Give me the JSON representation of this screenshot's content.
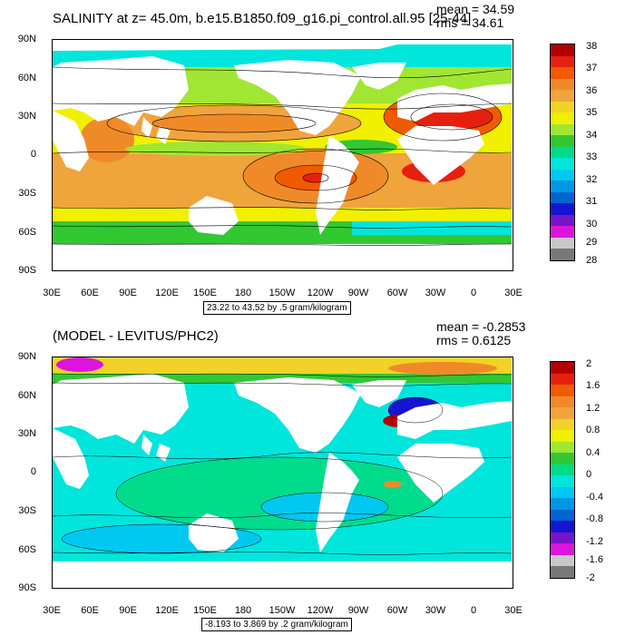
{
  "top": {
    "title": "SALINITY at z=  45.0m, b.e15.B1850.f09_g16.pi_control.all.95 [25-44]",
    "mean": "mean = 34.59",
    "rms": "rms = 34.61",
    "range": "23.22 to 43.52 by .5 gram/kilogram",
    "lat_labels": [
      "90N",
      "60N",
      "30N",
      "0",
      "30S",
      "60S",
      "90S"
    ],
    "lon_labels": [
      "30E",
      "60E",
      "90E",
      "120E",
      "150E",
      "180",
      "150W",
      "120W",
      "90W",
      "60W",
      "30W",
      "0",
      "30E"
    ],
    "colorbar_labels": [
      "38",
      "37",
      "36",
      "35",
      "34",
      "33",
      "32",
      "31",
      "30",
      "29",
      "28"
    ],
    "colorbar_colors": [
      "#b40000",
      "#e6200f",
      "#f05a00",
      "#f08a28",
      "#f0a43c",
      "#f0d228",
      "#f0f000",
      "#a0e632",
      "#32c832",
      "#00dc8c",
      "#00e6dc",
      "#00c8f0",
      "#0096e6",
      "#0064d2",
      "#1414d2",
      "#7814c8",
      "#dc14dc",
      "#c8c8c8",
      "#787878"
    ]
  },
  "bottom": {
    "title": "(MODEL - LEVITUS/PHC2)",
    "mean": "mean = -0.2853",
    "rms": "rms = 0.6125",
    "range": "-8.193 to 3.869 by .2 gram/kilogram",
    "lat_labels": [
      "90N",
      "60N",
      "30N",
      "0",
      "30S",
      "60S",
      "90S"
    ],
    "lon_labels": [
      "30E",
      "60E",
      "90E",
      "120E",
      "150E",
      "180",
      "150W",
      "120W",
      "90W",
      "60W",
      "30W",
      "0",
      "30E"
    ],
    "colorbar_labels": [
      "2",
      "1.6",
      "1.2",
      "0.8",
      "0.4",
      "0",
      "-0.4",
      "-0.8",
      "-1.2",
      "-1.6",
      "-2"
    ],
    "colorbar_colors": [
      "#b40000",
      "#e6200f",
      "#f05a00",
      "#f08a28",
      "#f0a43c",
      "#f0d228",
      "#f0f000",
      "#a0e632",
      "#32c832",
      "#00dc8c",
      "#00e6dc",
      "#00c8f0",
      "#0096e6",
      "#0064d2",
      "#1414d2",
      "#7814c8",
      "#dc14dc",
      "#c8c8c8",
      "#787878"
    ]
  }
}
